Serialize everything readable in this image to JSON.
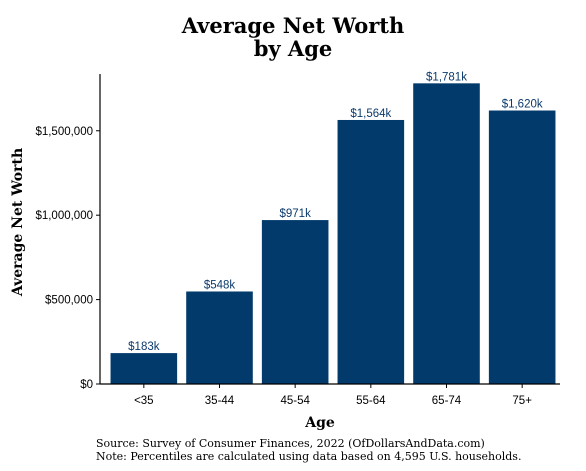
{
  "chart_data": {
    "type": "bar",
    "title": [
      "Average Net Worth",
      "by Age"
    ],
    "xlabel": "Age",
    "ylabel": "Average Net Worth",
    "categories": [
      "<35",
      "35-44",
      "45-54",
      "55-64",
      "65-74",
      "75+"
    ],
    "values": [
      183000,
      548000,
      971000,
      1564000,
      1781000,
      1620000
    ],
    "data_labels": [
      "$183k",
      "$548k",
      "$971k",
      "$1,564k",
      "$1,781k",
      "$1,620k"
    ],
    "yticks": [
      0,
      500000,
      1000000,
      1500000
    ],
    "ytick_labels": [
      "$0",
      "$500,000",
      "$1,000,000",
      "$1,500,000"
    ],
    "ylim": [
      0,
      1860000
    ],
    "bar_color": "#013a6b",
    "grid": false,
    "source_lines": [
      "Source:  Survey of Consumer Finances, 2022 (OfDollarsAndData.com)",
      "Note: Percentiles are calculated using data based on 4,595 U.S. households."
    ]
  }
}
